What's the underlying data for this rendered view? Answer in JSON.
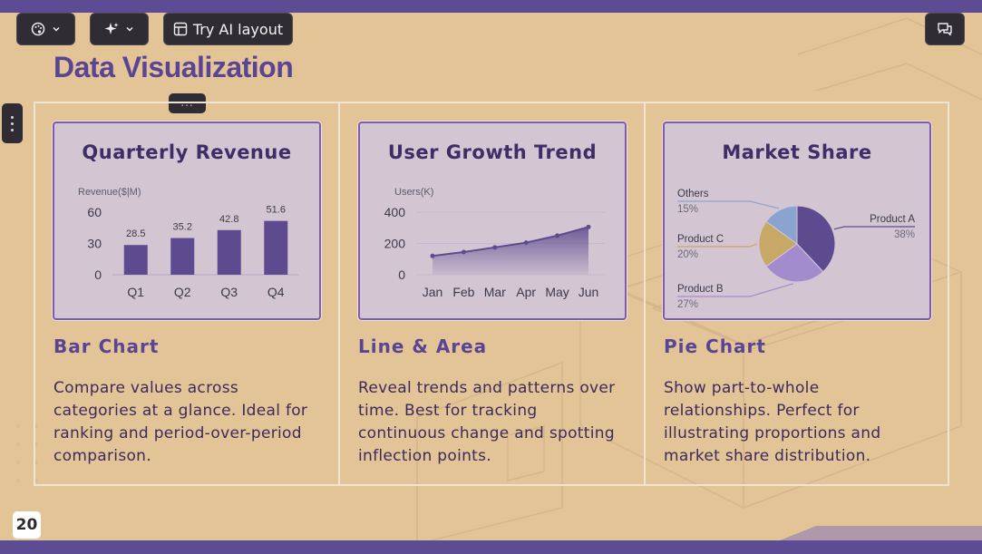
{
  "toolbar": {
    "theme_button_icon": "palette-icon",
    "ai_button_icon": "sparkles-icon",
    "try_ai_layout_label": "Try AI layout",
    "comment_button_icon": "comment-icon"
  },
  "slide": {
    "title": "Data Visualization",
    "more_label": "...",
    "page_number": "20",
    "colors": {
      "background": "#e3c497",
      "accent": "#5a4494",
      "card": "#d4c5d3",
      "band": "#5d4c93"
    }
  },
  "columns": [
    {
      "card_title": "Quarterly Revenue",
      "heading": "Bar Chart",
      "description": "Compare values across categories at a glance. Ideal for ranking and period-over-period comparison."
    },
    {
      "card_title": "User Growth Trend",
      "heading": "Line & Area",
      "description": "Reveal trends and patterns over time. Best for tracking continuous change and spotting inflection points."
    },
    {
      "card_title": "Market Share",
      "heading": "Pie Chart",
      "description": "Show part-to-whole relationships. Perfect for illustrating proportions and market share distribution."
    }
  ],
  "chart_data": [
    {
      "type": "bar",
      "title": "Quarterly Revenue",
      "ylabel": "Revenue($|M)",
      "categories": [
        "Q1",
        "Q2",
        "Q3",
        "Q4"
      ],
      "values": [
        28.5,
        35.2,
        42.8,
        51.6
      ],
      "yticks": [
        0,
        30,
        60
      ],
      "ylim": [
        0,
        60
      ],
      "color": "#5e4a8f"
    },
    {
      "type": "area",
      "title": "User Growth Trend",
      "ylabel": "Users(K)",
      "categories": [
        "Jan",
        "Feb",
        "Mar",
        "Apr",
        "May",
        "Jun"
      ],
      "values": [
        120,
        145,
        175,
        205,
        250,
        305
      ],
      "yticks": [
        0,
        200,
        400
      ],
      "ylim": [
        0,
        400
      ],
      "color": "#5e4a8f"
    },
    {
      "type": "pie",
      "title": "Market Share",
      "slices": [
        {
          "label": "Product A",
          "value": 38,
          "pct": "38%",
          "color": "#5e4a8f"
        },
        {
          "label": "Product B",
          "value": 27,
          "pct": "27%",
          "color": "#a38ccd"
        },
        {
          "label": "Product C",
          "value": 20,
          "pct": "20%",
          "color": "#c8a867"
        },
        {
          "label": "Others",
          "value": 15,
          "pct": "15%",
          "color": "#8aa4cf"
        }
      ]
    }
  ]
}
